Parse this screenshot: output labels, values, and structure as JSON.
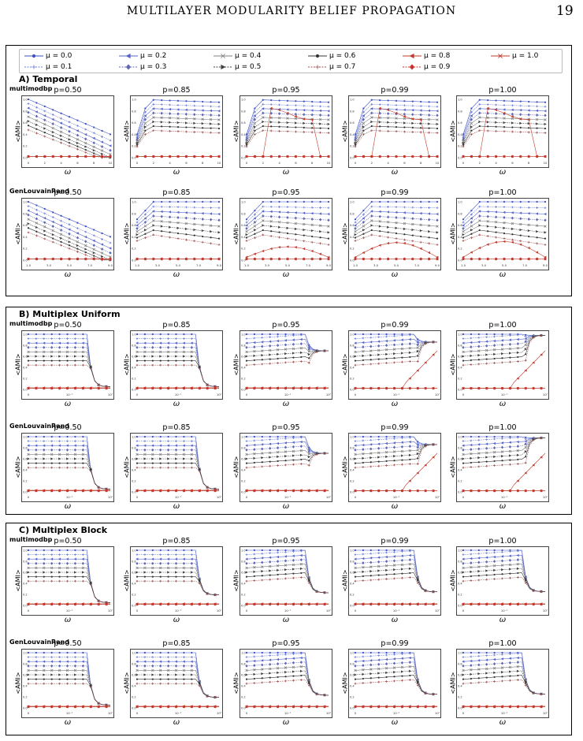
{
  "header": {
    "title": "MULTILAYER MODULARITY BELIEF PROPAGATION",
    "page_number": "19"
  },
  "legend": [
    {
      "label": "μ = 0.0",
      "color": "#3a4fc4",
      "marker": "dot",
      "dash": false
    },
    {
      "label": "μ = 0.1",
      "color": "#6d7ed6",
      "marker": "plus",
      "dash": true
    },
    {
      "label": "μ = 0.2",
      "color": "#5563c8",
      "marker": "tri-left",
      "dash": false
    },
    {
      "label": "μ = 0.3",
      "color": "#6068b5",
      "marker": "diamond",
      "dash": true
    },
    {
      "label": "μ = 0.4",
      "color": "#808080",
      "marker": "x",
      "dash": false
    },
    {
      "label": "μ = 0.5",
      "color": "#404040",
      "marker": "tri-right",
      "dash": true
    },
    {
      "label": "μ = 0.6",
      "color": "#333333",
      "marker": "dot",
      "dash": false
    },
    {
      "label": "μ = 0.7",
      "color": "#a05050",
      "marker": "plus",
      "dash": true
    },
    {
      "label": "μ = 0.8",
      "color": "#c0392b",
      "marker": "tri-left",
      "dash": false
    },
    {
      "label": "μ = 0.9",
      "color": "#c9302c",
      "marker": "diamond",
      "dash": true
    },
    {
      "label": "μ = 1.0",
      "color": "#c0392b",
      "marker": "x",
      "dash": false
    }
  ],
  "sections": [
    {
      "title": "A) Temporal",
      "scale": "linear",
      "rows": [
        {
          "label": "multimodbp",
          "xticks": [
            "0",
            "2",
            "4",
            "6",
            "8",
            "10"
          ],
          "titles": [
            "p=0.50",
            "p=0.85",
            "p=0.95",
            "p=0.99",
            "p=1.00"
          ]
        },
        {
          "label": "GenLouvainRand",
          "xticks": [
            "1.0",
            "3.0",
            "5.0",
            "7.0",
            "9.0"
          ],
          "titles": [
            "p=0.50",
            "p=0.85",
            "p=0.95",
            "p=0.99",
            "p=1.00"
          ]
        }
      ]
    },
    {
      "title": "B) Multiplex Uniform",
      "scale": "log",
      "rows": [
        {
          "label": "multimodbp",
          "xticks": [
            "0",
            "10⁻¹",
            "10⁰"
          ],
          "titles": [
            "p=0.50",
            "p=0.85",
            "p=0.95",
            "p=0.99",
            "p=1.00"
          ]
        },
        {
          "label": "GenLouvainRand",
          "xticks": [
            "0",
            "10⁻¹",
            "10⁰"
          ],
          "titles": [
            "p=0.50",
            "p=0.85",
            "p=0.95",
            "p=0.99",
            "p=1.00"
          ]
        }
      ]
    },
    {
      "title": "C) Multiplex Block",
      "scale": "log",
      "rows": [
        {
          "label": "multimodbp",
          "xticks": [
            "0",
            "10⁻¹",
            "10⁰"
          ],
          "titles": [
            "p=0.50",
            "p=0.85",
            "p=0.95",
            "p=0.99",
            "p=1.00"
          ]
        },
        {
          "label": "GenLouvainRand",
          "xticks": [
            "0",
            "10⁻¹",
            "10⁰"
          ],
          "titles": [
            "p=0.50",
            "p=0.85",
            "p=0.95",
            "p=0.99",
            "p=1.00"
          ]
        }
      ]
    }
  ],
  "axis": {
    "ylabel": "<AMI>",
    "xlabel": "ω",
    "yticks": [
      "0.0",
      "0.2",
      "0.4",
      "0.6",
      "0.8",
      "1.0"
    ]
  },
  "chart_data": {
    "type": "line",
    "title": "",
    "ylabel": "<AMI>",
    "xlabel": "ω",
    "ylim": [
      0,
      1
    ],
    "series_names": [
      "μ = 0.0",
      "μ = 0.1",
      "μ = 0.2",
      "μ = 0.3",
      "μ = 0.4",
      "μ = 0.5",
      "μ = 0.6",
      "μ = 0.7",
      "μ = 0.8",
      "μ = 0.9",
      "μ = 1.0"
    ],
    "panels_note_values": {
      "temporal_multimodbp_p050_x": [
        0,
        1,
        2,
        3,
        4,
        5,
        6,
        7,
        8,
        9,
        10
      ],
      "temporal_multimodbp_p050": {
        "μ = 0.0": [
          0.98,
          0.95,
          0.88,
          0.8,
          0.72,
          0.64,
          0.56,
          0.5,
          0.44,
          0.38,
          0.34
        ],
        "μ = 0.3": [
          0.9,
          0.85,
          0.75,
          0.6,
          0.45,
          0.35,
          0.25,
          0.15,
          0.08,
          0.02,
          0.0
        ],
        "μ = 0.6": [
          0.45,
          0.45,
          0.44,
          0.3,
          0.15,
          0.02,
          0.0,
          0.0,
          0.0,
          0.0,
          0.0
        ],
        "μ = 0.9": [
          0.02,
          0.02,
          0.02,
          0.02,
          0.02,
          0.02,
          0.02,
          0.02,
          0.02,
          0.02,
          0.02
        ]
      }
    }
  }
}
